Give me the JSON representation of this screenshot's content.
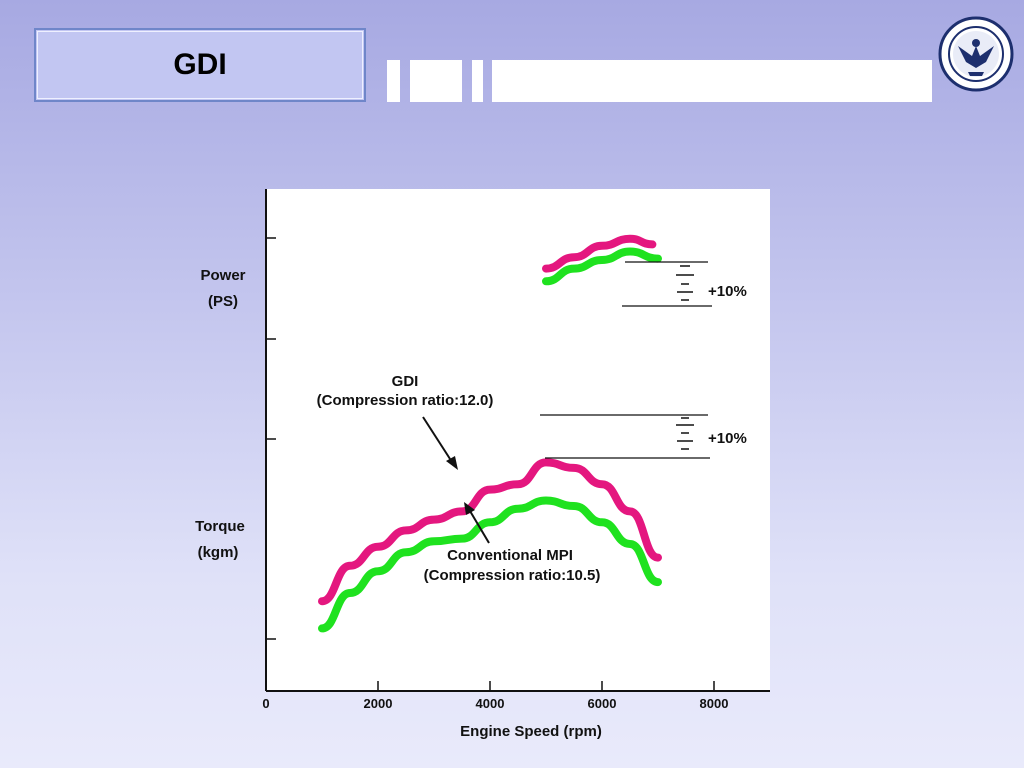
{
  "slide": {
    "title": "GDI"
  },
  "colors": {
    "gdi": "#e4177f",
    "mpi": "#1fe21f",
    "title_border": "#6f86c9"
  },
  "chart_data": {
    "type": "line",
    "xlabel": "Engine Speed  (rpm)",
    "x_ticks": [
      "0",
      "2000",
      "4000",
      "6000",
      "8000"
    ],
    "xlim": [
      0,
      9000
    ],
    "y_labels": {
      "power_line1": "Power",
      "power_line2": "(PS)",
      "torque_line1": "Torque",
      "torque_line2": "(kgm)"
    },
    "annotations": {
      "gdi_line1": "GDI",
      "gdi_line2": "(Compression ratio:12.0)",
      "mpi_line1": "Conventional MPI",
      "mpi_line2": "(Compression ratio:10.5)",
      "power_gain": "+10%",
      "torque_gain": "+10%"
    },
    "series": [
      {
        "name": "GDI (Compression ratio:12.0)",
        "group": "power",
        "x": [
          5000,
          5500,
          6000,
          6500,
          6900
        ],
        "y": [
          0.82,
          0.9,
          0.98,
          1.03,
          0.99
        ]
      },
      {
        "name": "Conventional MPI (Compression ratio:10.5)",
        "group": "power",
        "x": [
          5000,
          5500,
          6000,
          6500,
          7000
        ],
        "y": [
          0.73,
          0.82,
          0.88,
          0.94,
          0.89
        ]
      },
      {
        "name": "GDI (Compression ratio:12.0)",
        "group": "torque",
        "x": [
          1000,
          1500,
          2000,
          2500,
          3000,
          3500,
          4000,
          4500,
          5000,
          5500,
          6000,
          6500,
          7000
        ],
        "y": [
          0.22,
          0.35,
          0.42,
          0.48,
          0.52,
          0.55,
          0.63,
          0.65,
          0.73,
          0.71,
          0.65,
          0.55,
          0.38
        ]
      },
      {
        "name": "Conventional MPI (Compression ratio:10.5)",
        "group": "torque",
        "x": [
          1000,
          1500,
          2000,
          2500,
          3000,
          3500,
          4000,
          4500,
          5000,
          5500,
          6000,
          6500,
          7000
        ],
        "y": [
          0.12,
          0.25,
          0.33,
          0.4,
          0.44,
          0.45,
          0.51,
          0.56,
          0.59,
          0.57,
          0.51,
          0.43,
          0.29
        ]
      }
    ]
  }
}
